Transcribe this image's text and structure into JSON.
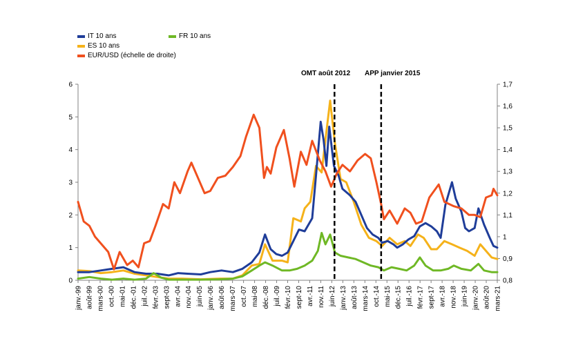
{
  "legend": {
    "it": "IT 10 ans",
    "fr": "FR 10 ans",
    "es": "ES 10 ans",
    "eurusd": "EUR/USD (échelle de droite)"
  },
  "annotations": {
    "omt": "OMT août 2012",
    "app": "APP janvier 2015"
  },
  "colors": {
    "it": "#1f3d99",
    "es": "#f5b21a",
    "fr": "#6fb825",
    "eurusd": "#f0501e",
    "vline": "#000000",
    "axis": "#808080"
  },
  "chart_data": {
    "type": "line",
    "x_ticks": [
      "janv.-99",
      "août-99",
      "mars-00",
      "oct.-00",
      "mai-01",
      "déc.-01",
      "juil.-02",
      "févr.-03",
      "sept-03",
      "avr.-04",
      "nov.-04",
      "juin-05",
      "janv.-06",
      "août-06",
      "mars-07",
      "oct.-07",
      "mai-08",
      "déc.-08",
      "juil.-09",
      "févr.-10",
      "sept-10",
      "avr.-11",
      "nov.-11",
      "juin-12",
      "janv.-13",
      "août-13",
      "mars-14",
      "oct.-14",
      "mai-15",
      "déc.-15",
      "juil.-16",
      "févr.-17",
      "sept-17",
      "avr.-18",
      "nov.-18",
      "juin-19",
      "janv.-20",
      "août-20",
      "mars-21"
    ],
    "y_left": {
      "ylim": [
        0,
        6
      ],
      "ticks": [
        "0",
        "1",
        "2",
        "3",
        "4",
        "5",
        "6"
      ]
    },
    "y_right": {
      "ylim": [
        0.8,
        1.7
      ],
      "ticks": [
        "0,8",
        "0,9",
        "1",
        "1,1",
        "1,2",
        "1,3",
        "1,4",
        "1,5",
        "1,6",
        "1,7"
      ]
    },
    "vertical_lines": [
      {
        "label": "OMT août 2012",
        "x": 2012.58
      },
      {
        "label": "APP janvier 2015",
        "x": 2015.05
      }
    ],
    "series": [
      {
        "name": "IT 10 ans",
        "axis": "left",
        "points": [
          [
            1999.0,
            0.25
          ],
          [
            1999.6,
            0.25
          ],
          [
            2000.2,
            0.3
          ],
          [
            2000.8,
            0.35
          ],
          [
            2001.4,
            0.4
          ],
          [
            2002.0,
            0.25
          ],
          [
            2002.6,
            0.2
          ],
          [
            2003.2,
            0.2
          ],
          [
            2003.8,
            0.15
          ],
          [
            2004.3,
            0.22
          ],
          [
            2004.8,
            0.2
          ],
          [
            2005.5,
            0.18
          ],
          [
            2006.0,
            0.25
          ],
          [
            2006.6,
            0.3
          ],
          [
            2007.2,
            0.25
          ],
          [
            2007.7,
            0.35
          ],
          [
            2008.2,
            0.55
          ],
          [
            2008.6,
            0.85
          ],
          [
            2008.9,
            1.4
          ],
          [
            2009.2,
            0.95
          ],
          [
            2009.5,
            0.8
          ],
          [
            2009.8,
            0.75
          ],
          [
            2010.1,
            0.85
          ],
          [
            2010.4,
            1.2
          ],
          [
            2010.7,
            1.55
          ],
          [
            2011.0,
            1.5
          ],
          [
            2011.4,
            1.9
          ],
          [
            2011.6,
            3.2
          ],
          [
            2011.85,
            4.85
          ],
          [
            2012.0,
            4.3
          ],
          [
            2012.15,
            3.5
          ],
          [
            2012.3,
            4.7
          ],
          [
            2012.55,
            3.5
          ],
          [
            2012.8,
            3.2
          ],
          [
            2013.0,
            2.8
          ],
          [
            2013.4,
            2.6
          ],
          [
            2013.7,
            2.4
          ],
          [
            2014.0,
            2.0
          ],
          [
            2014.3,
            1.6
          ],
          [
            2014.6,
            1.4
          ],
          [
            2014.9,
            1.3
          ],
          [
            2015.1,
            1.15
          ],
          [
            2015.4,
            1.2
          ],
          [
            2015.7,
            1.1
          ],
          [
            2015.9,
            1.0
          ],
          [
            2016.2,
            1.1
          ],
          [
            2016.5,
            1.25
          ],
          [
            2016.8,
            1.35
          ],
          [
            2017.1,
            1.65
          ],
          [
            2017.4,
            1.75
          ],
          [
            2017.7,
            1.65
          ],
          [
            2018.0,
            1.5
          ],
          [
            2018.2,
            1.3
          ],
          [
            2018.45,
            2.3
          ],
          [
            2018.8,
            3.0
          ],
          [
            2019.0,
            2.5
          ],
          [
            2019.3,
            2.1
          ],
          [
            2019.5,
            1.6
          ],
          [
            2019.7,
            1.5
          ],
          [
            2020.0,
            1.6
          ],
          [
            2020.2,
            2.2
          ],
          [
            2020.5,
            1.7
          ],
          [
            2020.8,
            1.3
          ],
          [
            2021.0,
            1.05
          ],
          [
            2021.2,
            1.0
          ]
        ]
      },
      {
        "name": "ES 10 ans",
        "axis": "left",
        "points": [
          [
            1999.0,
            0.3
          ],
          [
            1999.6,
            0.28
          ],
          [
            2000.2,
            0.22
          ],
          [
            2000.8,
            0.25
          ],
          [
            2001.4,
            0.3
          ],
          [
            2002.0,
            0.2
          ],
          [
            2002.6,
            0.15
          ],
          [
            2003.2,
            0.1
          ],
          [
            2003.8,
            0.05
          ],
          [
            2004.5,
            0.05
          ],
          [
            2005.5,
            0.03
          ],
          [
            2006.5,
            0.05
          ],
          [
            2007.2,
            0.05
          ],
          [
            2007.7,
            0.15
          ],
          [
            2008.2,
            0.45
          ],
          [
            2008.6,
            0.5
          ],
          [
            2008.9,
            1.1
          ],
          [
            2009.3,
            0.6
          ],
          [
            2009.8,
            0.6
          ],
          [
            2010.1,
            0.55
          ],
          [
            2010.4,
            1.9
          ],
          [
            2010.8,
            1.8
          ],
          [
            2011.0,
            2.2
          ],
          [
            2011.3,
            2.4
          ],
          [
            2011.6,
            3.5
          ],
          [
            2011.9,
            3.3
          ],
          [
            2012.1,
            4.3
          ],
          [
            2012.35,
            5.5
          ],
          [
            2012.6,
            4.2
          ],
          [
            2012.9,
            3.1
          ],
          [
            2013.2,
            3.0
          ],
          [
            2013.6,
            2.4
          ],
          [
            2014.0,
            1.7
          ],
          [
            2014.4,
            1.3
          ],
          [
            2014.8,
            1.2
          ],
          [
            2015.1,
            1.05
          ],
          [
            2015.5,
            1.3
          ],
          [
            2015.9,
            1.1
          ],
          [
            2016.3,
            1.2
          ],
          [
            2016.6,
            1.05
          ],
          [
            2017.0,
            1.4
          ],
          [
            2017.3,
            1.3
          ],
          [
            2017.7,
            0.95
          ],
          [
            2018.0,
            0.95
          ],
          [
            2018.4,
            1.2
          ],
          [
            2018.8,
            1.1
          ],
          [
            2019.2,
            1.0
          ],
          [
            2019.6,
            0.9
          ],
          [
            2020.0,
            0.75
          ],
          [
            2020.3,
            1.1
          ],
          [
            2020.6,
            0.9
          ],
          [
            2020.9,
            0.7
          ],
          [
            2021.2,
            0.65
          ]
        ]
      },
      {
        "name": "FR 10 ans",
        "axis": "left",
        "points": [
          [
            1999.0,
            0.05
          ],
          [
            1999.6,
            0.1
          ],
          [
            2000.2,
            0.05
          ],
          [
            2000.8,
            0.02
          ],
          [
            2001.4,
            0.05
          ],
          [
            2002.0,
            0.02
          ],
          [
            2002.6,
            0.05
          ],
          [
            2003.0,
            0.22
          ],
          [
            2003.4,
            0.08
          ],
          [
            2003.8,
            0.02
          ],
          [
            2004.5,
            0.02
          ],
          [
            2005.5,
            0.02
          ],
          [
            2006.5,
            0.03
          ],
          [
            2007.2,
            0.05
          ],
          [
            2007.7,
            0.12
          ],
          [
            2008.2,
            0.3
          ],
          [
            2008.6,
            0.45
          ],
          [
            2008.9,
            0.55
          ],
          [
            2009.3,
            0.45
          ],
          [
            2009.8,
            0.3
          ],
          [
            2010.2,
            0.3
          ],
          [
            2010.6,
            0.35
          ],
          [
            2011.0,
            0.45
          ],
          [
            2011.4,
            0.6
          ],
          [
            2011.7,
            0.9
          ],
          [
            2011.9,
            1.45
          ],
          [
            2012.1,
            1.1
          ],
          [
            2012.35,
            1.4
          ],
          [
            2012.6,
            0.85
          ],
          [
            2012.9,
            0.75
          ],
          [
            2013.3,
            0.7
          ],
          [
            2013.7,
            0.65
          ],
          [
            2014.1,
            0.55
          ],
          [
            2014.5,
            0.45
          ],
          [
            2014.9,
            0.4
          ],
          [
            2015.2,
            0.3
          ],
          [
            2015.6,
            0.4
          ],
          [
            2016.0,
            0.35
          ],
          [
            2016.4,
            0.3
          ],
          [
            2016.8,
            0.45
          ],
          [
            2017.1,
            0.7
          ],
          [
            2017.4,
            0.45
          ],
          [
            2017.8,
            0.3
          ],
          [
            2018.2,
            0.3
          ],
          [
            2018.6,
            0.35
          ],
          [
            2018.9,
            0.45
          ],
          [
            2019.3,
            0.35
          ],
          [
            2019.8,
            0.3
          ],
          [
            2020.2,
            0.5
          ],
          [
            2020.5,
            0.3
          ],
          [
            2020.9,
            0.25
          ],
          [
            2021.2,
            0.25
          ]
        ]
      },
      {
        "name": "EUR/USD (échelle de droite)",
        "axis": "right",
        "points": [
          [
            1999.0,
            1.16
          ],
          [
            1999.3,
            1.07
          ],
          [
            1999.6,
            1.05
          ],
          [
            1999.9,
            1.0
          ],
          [
            2000.2,
            0.97
          ],
          [
            2000.6,
            0.93
          ],
          [
            2000.9,
            0.85
          ],
          [
            2001.2,
            0.93
          ],
          [
            2001.6,
            0.87
          ],
          [
            2001.9,
            0.89
          ],
          [
            2002.2,
            0.86
          ],
          [
            2002.5,
            0.97
          ],
          [
            2002.8,
            0.98
          ],
          [
            2003.1,
            1.05
          ],
          [
            2003.5,
            1.15
          ],
          [
            2003.8,
            1.13
          ],
          [
            2004.1,
            1.25
          ],
          [
            2004.4,
            1.2
          ],
          [
            2004.8,
            1.3
          ],
          [
            2005.0,
            1.34
          ],
          [
            2005.4,
            1.26
          ],
          [
            2005.7,
            1.2
          ],
          [
            2006.0,
            1.21
          ],
          [
            2006.4,
            1.27
          ],
          [
            2006.8,
            1.28
          ],
          [
            2007.2,
            1.32
          ],
          [
            2007.6,
            1.37
          ],
          [
            2007.9,
            1.46
          ],
          [
            2008.3,
            1.56
          ],
          [
            2008.6,
            1.5
          ],
          [
            2008.85,
            1.27
          ],
          [
            2009.0,
            1.32
          ],
          [
            2009.2,
            1.29
          ],
          [
            2009.5,
            1.41
          ],
          [
            2009.9,
            1.49
          ],
          [
            2010.2,
            1.36
          ],
          [
            2010.45,
            1.23
          ],
          [
            2010.8,
            1.39
          ],
          [
            2011.1,
            1.33
          ],
          [
            2011.4,
            1.44
          ],
          [
            2011.8,
            1.35
          ],
          [
            2012.1,
            1.3
          ],
          [
            2012.4,
            1.23
          ],
          [
            2012.7,
            1.29
          ],
          [
            2013.0,
            1.33
          ],
          [
            2013.4,
            1.3
          ],
          [
            2013.8,
            1.35
          ],
          [
            2014.2,
            1.38
          ],
          [
            2014.5,
            1.36
          ],
          [
            2014.8,
            1.25
          ],
          [
            2015.05,
            1.15
          ],
          [
            2015.2,
            1.08
          ],
          [
            2015.5,
            1.12
          ],
          [
            2015.9,
            1.06
          ],
          [
            2016.3,
            1.13
          ],
          [
            2016.6,
            1.11
          ],
          [
            2016.9,
            1.06
          ],
          [
            2017.2,
            1.07
          ],
          [
            2017.6,
            1.18
          ],
          [
            2018.1,
            1.24
          ],
          [
            2018.4,
            1.16
          ],
          [
            2018.9,
            1.14
          ],
          [
            2019.3,
            1.13
          ],
          [
            2019.7,
            1.1
          ],
          [
            2020.0,
            1.1
          ],
          [
            2020.3,
            1.09
          ],
          [
            2020.6,
            1.18
          ],
          [
            2020.9,
            1.19
          ],
          [
            2021.0,
            1.22
          ],
          [
            2021.2,
            1.19
          ]
        ]
      }
    ]
  }
}
